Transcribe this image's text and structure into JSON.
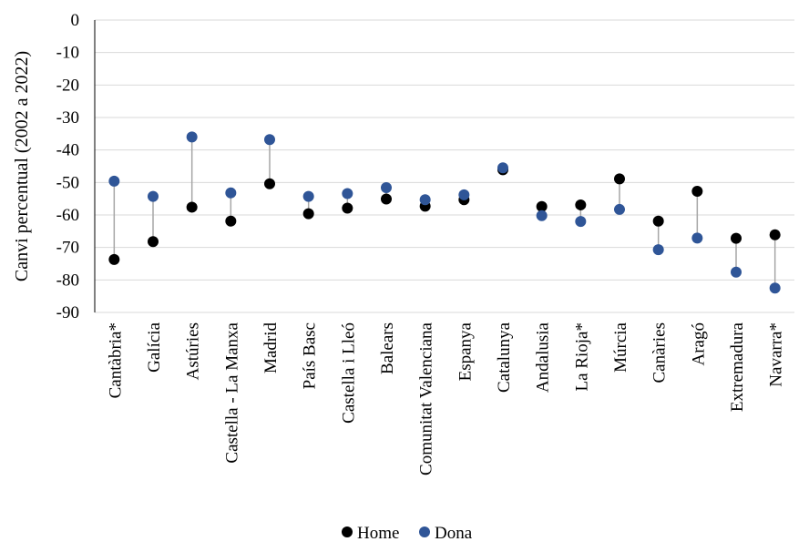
{
  "chart_data": {
    "type": "scatter",
    "ylabel": "Canvi percentual (2002 a 2022)",
    "ylim": [
      -90,
      0
    ],
    "yticks": [
      0,
      -10,
      -20,
      -30,
      -40,
      -50,
      -60,
      -70,
      -80,
      -90
    ],
    "grid": true,
    "legend_position": "bottom",
    "categories": [
      "Cantàbria*",
      "Galícia",
      "Astúries",
      "Castella - La Manxa",
      "Madrid",
      "País Basc",
      "Castella i Lleó",
      "Balears",
      "Comunitat Valenciana",
      "Espanya",
      "Catalunya",
      "Andalusia",
      "La Rioja*",
      "Múrcia",
      "Canàries",
      "Aragó",
      "Extremadura",
      "Navarra*"
    ],
    "series": [
      {
        "name": "Home",
        "color": "#000000",
        "values": [
          -73.7,
          -68.2,
          -57.6,
          -61.9,
          -50.4,
          -59.6,
          -57.9,
          -55.1,
          -57.3,
          -55.3,
          -46.1,
          -57.4,
          -56.9,
          -48.9,
          -61.9,
          -52.7,
          -67.2,
          -66.1
        ]
      },
      {
        "name": "Dona",
        "color": "#2F5597",
        "values": [
          -49.6,
          -54.3,
          -36.0,
          -53.2,
          -36.8,
          -54.3,
          -53.4,
          -51.6,
          -55.3,
          -53.8,
          -45.5,
          -60.2,
          -62.0,
          -58.3,
          -70.7,
          -67.1,
          -77.6,
          -82.5
        ]
      }
    ],
    "connector_color": "#A6A6A6"
  }
}
